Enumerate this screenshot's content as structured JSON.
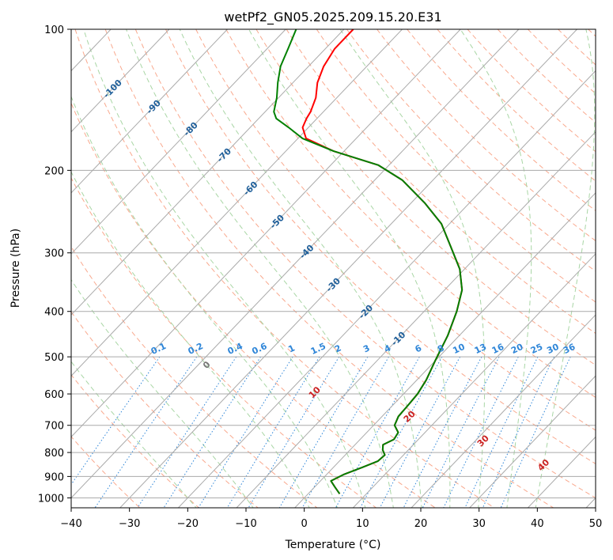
{
  "chart_data": {
    "type": "line",
    "title": "wetPf2_GN05.2025.209.15.20.E31",
    "xlabel": "Temperature (°C)",
    "ylabel": "Pressure (hPa)",
    "xlim": [
      -40,
      50
    ],
    "ylim": [
      1050,
      100
    ],
    "y_scale": "log",
    "grid": true,
    "x_ticks": [
      "−40",
      "−30",
      "−20",
      "−10",
      "0",
      "10",
      "20",
      "30",
      "40",
      "50"
    ],
    "y_ticks": [
      {
        "p": 100,
        "label": "100"
      },
      {
        "p": 200,
        "label": "200"
      },
      {
        "p": 300,
        "label": "300"
      },
      {
        "p": 400,
        "label": "400"
      },
      {
        "p": 500,
        "label": "500"
      },
      {
        "p": 600,
        "label": "600"
      },
      {
        "p": 700,
        "label": "700"
      },
      {
        "p": 800,
        "label": "800"
      },
      {
        "p": 900,
        "label": "900"
      },
      {
        "p": 1000,
        "label": "1000"
      }
    ],
    "series": [
      {
        "color": "#ff0000",
        "points": [
          [
            5.4,
            980
          ],
          [
            3.6,
            950
          ],
          [
            1.8,
            920
          ],
          [
            3,
            890
          ],
          [
            5,
            860
          ],
          [
            6.6,
            835
          ],
          [
            6.8,
            810
          ],
          [
            5.6,
            790
          ],
          [
            4.8,
            770
          ],
          [
            5.8,
            750
          ],
          [
            5.4,
            725
          ],
          [
            3.6,
            700
          ],
          [
            2.8,
            670
          ],
          [
            2.6,
            630
          ],
          [
            2.4,
            600
          ],
          [
            1.6,
            560
          ],
          [
            0,
            510
          ],
          [
            -2,
            450
          ],
          [
            -4.4,
            400
          ],
          [
            -7,
            360
          ],
          [
            -10.8,
            325
          ],
          [
            -16.2,
            290
          ],
          [
            -21.4,
            260
          ],
          [
            -27.6,
            235
          ],
          [
            -35.2,
            210
          ],
          [
            -41.8,
            195
          ],
          [
            -51.8,
            182
          ],
          [
            -58.6,
            171
          ],
          [
            -61,
            162
          ],
          [
            -61.8,
            155
          ],
          [
            -62.2,
            150
          ],
          [
            -63.6,
            140
          ],
          [
            -65.8,
            130
          ],
          [
            -67.4,
            120
          ],
          [
            -68.4,
            110
          ],
          [
            -68.4,
            100
          ]
        ]
      },
      {
        "color": "#008000",
        "points": [
          [
            5.4,
            980
          ],
          [
            3.6,
            950
          ],
          [
            1.8,
            920
          ],
          [
            3,
            890
          ],
          [
            5,
            860
          ],
          [
            6.6,
            835
          ],
          [
            6.8,
            810
          ],
          [
            5.6,
            790
          ],
          [
            4.8,
            770
          ],
          [
            5.8,
            750
          ],
          [
            5.4,
            725
          ],
          [
            3.6,
            700
          ],
          [
            2.8,
            670
          ],
          [
            2.6,
            630
          ],
          [
            2.4,
            600
          ],
          [
            1.6,
            560
          ],
          [
            0,
            510
          ],
          [
            -2,
            450
          ],
          [
            -4.4,
            400
          ],
          [
            -7,
            360
          ],
          [
            -10.8,
            325
          ],
          [
            -16.2,
            290
          ],
          [
            -21.4,
            260
          ],
          [
            -27.6,
            235
          ],
          [
            -35.2,
            210
          ],
          [
            -41.8,
            195
          ],
          [
            -51.8,
            182
          ],
          [
            -59.2,
            171
          ],
          [
            -63.4,
            162
          ],
          [
            -67,
            155
          ],
          [
            -68.5,
            150
          ],
          [
            -70.3,
            140
          ],
          [
            -72.6,
            130
          ],
          [
            -74.8,
            120
          ],
          [
            -76.4,
            110
          ],
          [
            -78.2,
            100
          ]
        ]
      }
    ],
    "isotherm_labels": [
      {
        "value": -100,
        "label": "-100"
      },
      {
        "value": -90,
        "label": "-90"
      },
      {
        "value": -80,
        "label": "-80"
      },
      {
        "value": -70,
        "label": "-70"
      },
      {
        "value": -60,
        "label": "-60"
      },
      {
        "value": -50,
        "label": "-50"
      },
      {
        "value": -40,
        "label": "-40"
      },
      {
        "value": -30,
        "label": "-30"
      },
      {
        "value": -20,
        "label": "-20"
      },
      {
        "value": -10,
        "label": "-10"
      }
    ],
    "mixing_ratios": [
      {
        "w": 0.1,
        "label": "0.1"
      },
      {
        "w": 0.2,
        "label": "0.2"
      },
      {
        "w": 0.4,
        "label": "0.4"
      },
      {
        "w": 0.6,
        "label": "0.6"
      },
      {
        "w": 1,
        "label": "1"
      },
      {
        "w": 1.5,
        "label": "1.5"
      },
      {
        "w": 2,
        "label": "2"
      },
      {
        "w": 3,
        "label": "3"
      },
      {
        "w": 4,
        "label": "4"
      },
      {
        "w": 6,
        "label": "6"
      },
      {
        "w": 8,
        "label": "8"
      },
      {
        "w": 10,
        "label": "10"
      },
      {
        "w": 13,
        "label": "13"
      },
      {
        "w": 16,
        "label": "16"
      },
      {
        "w": 20,
        "label": "20"
      },
      {
        "w": 25,
        "label": "25"
      },
      {
        "w": 30,
        "label": "30"
      },
      {
        "w": 36,
        "label": "36"
      }
    ],
    "moist_adiabat_labels": [
      {
        "value": 0,
        "label": "0"
      },
      {
        "value": 10,
        "label": "10"
      },
      {
        "value": 20,
        "label": "20"
      },
      {
        "value": 30,
        "label": "30"
      },
      {
        "value": 40,
        "label": "40"
      }
    ],
    "colors": {
      "isotherm": "#aaaaaa",
      "dry_adiabat": "#f9a98e",
      "moist_adiabat": "#a9d6a5",
      "mixing_ratio": "#2f86d8",
      "isotherm_label": "#1f5f9a",
      "moist_label": "#cc2222",
      "zero_label": "#777777",
      "boundary": "#d9bfa2"
    }
  }
}
